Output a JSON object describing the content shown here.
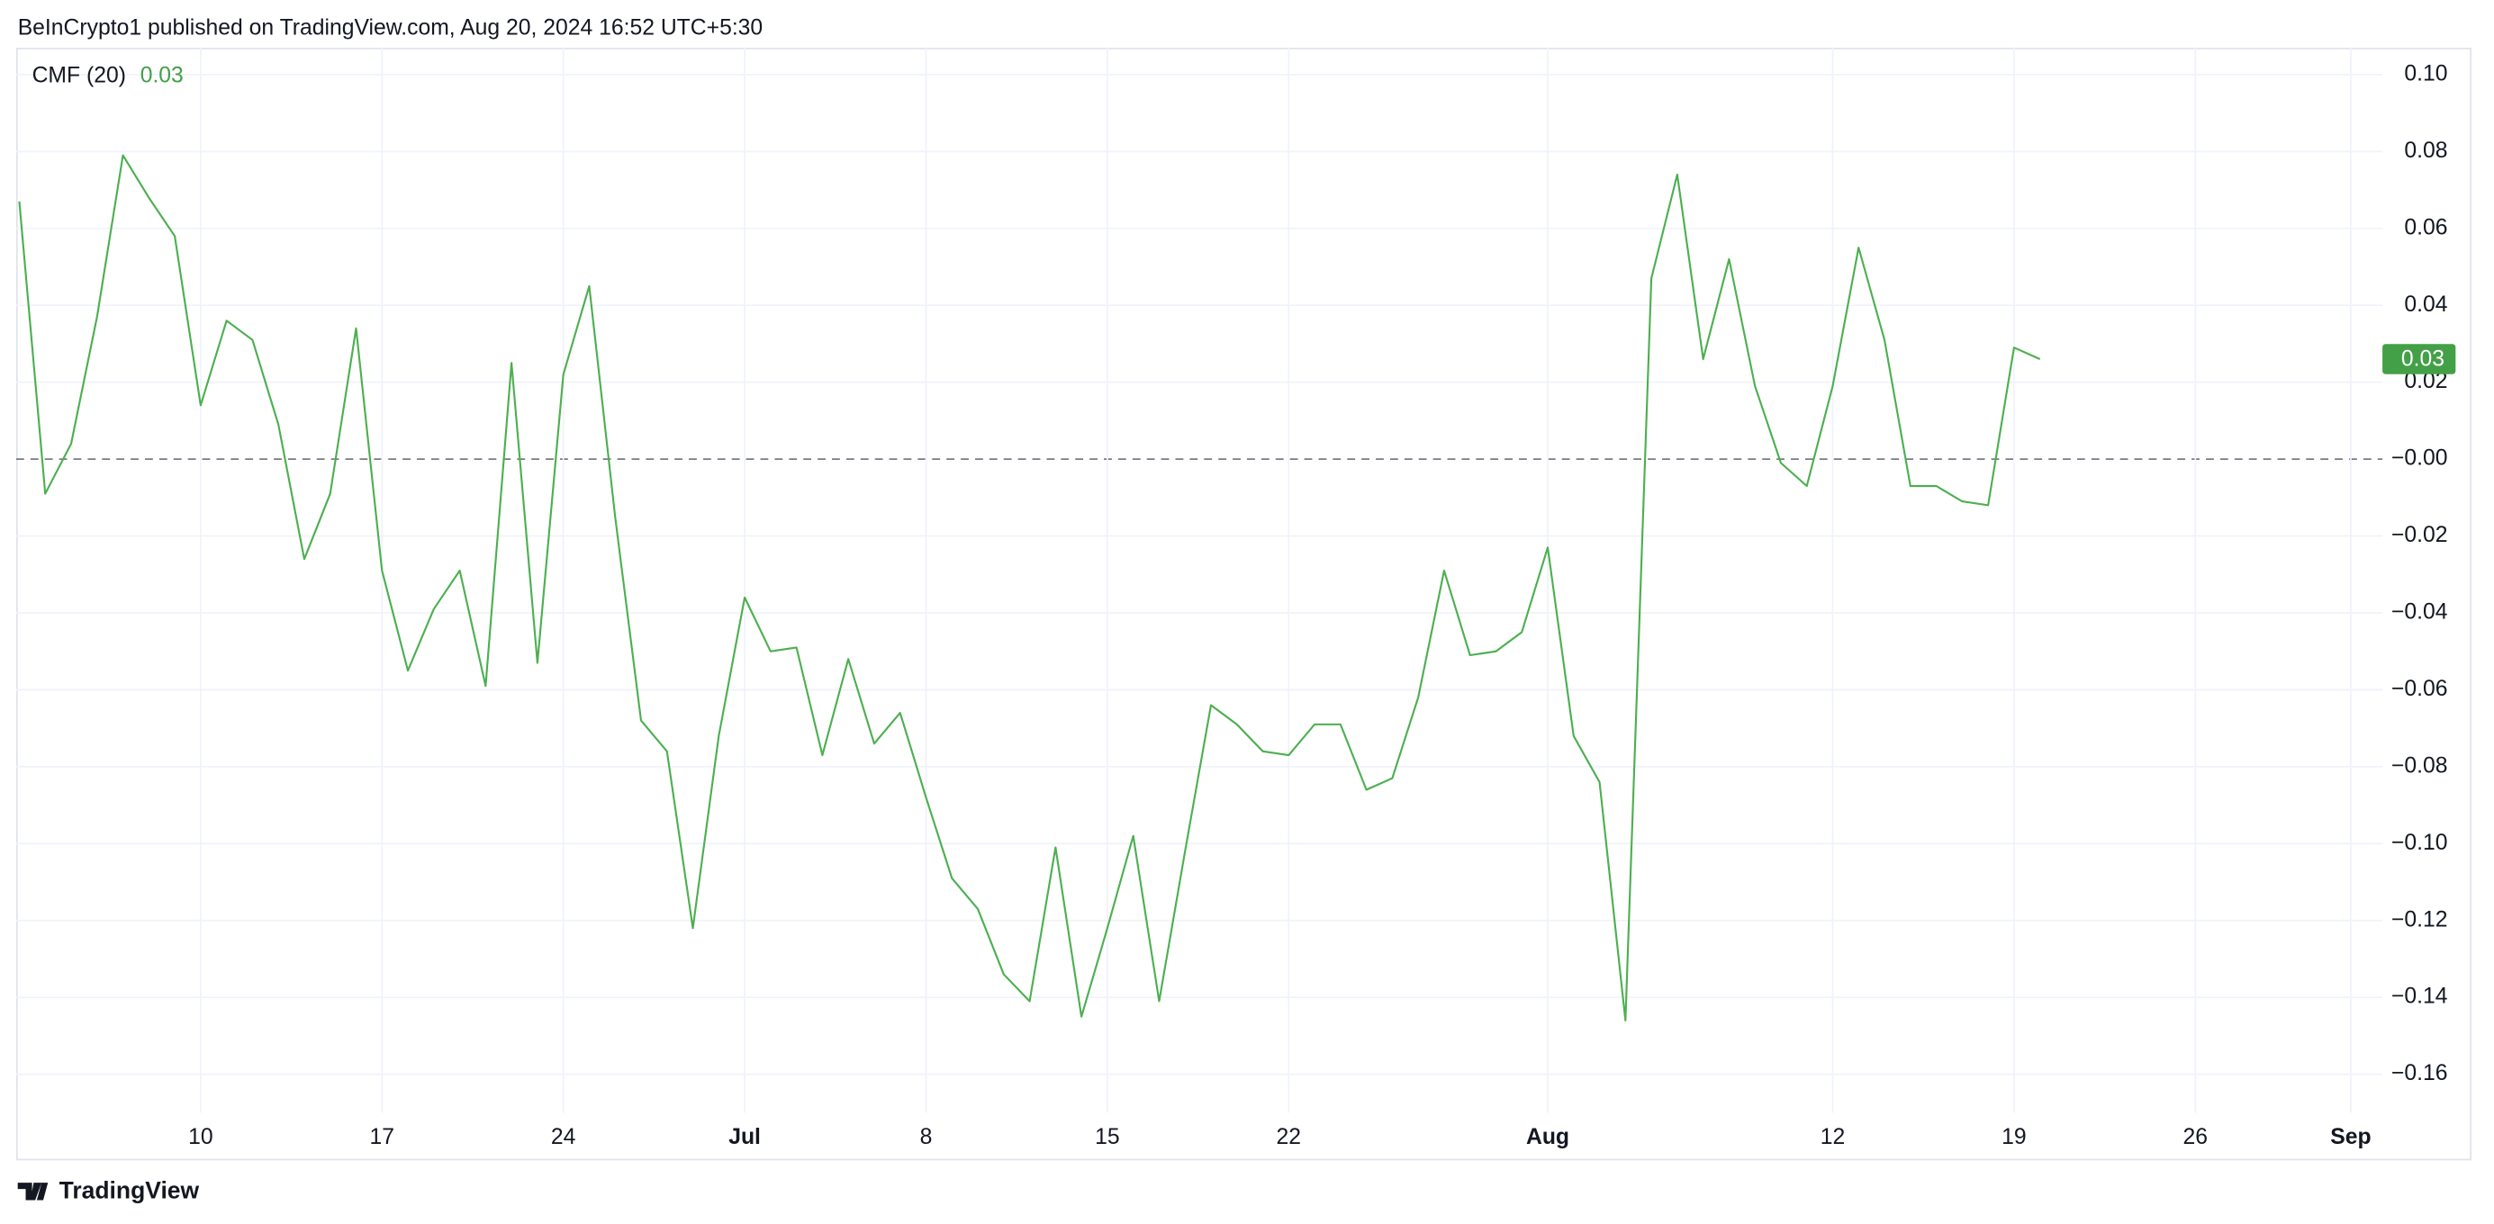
{
  "header": {
    "text": "BeInCrypto1 published on TradingView.com, Aug 20, 2024 16:52 UTC+5:30"
  },
  "footer": {
    "brand": "TradingView"
  },
  "chart_data": {
    "type": "line",
    "grid": true,
    "categories": [
      null,
      null,
      null,
      null,
      null,
      null,
      null,
      "10",
      null,
      null,
      null,
      null,
      null,
      null,
      "17",
      null,
      null,
      null,
      null,
      null,
      null,
      "24",
      null,
      null,
      null,
      null,
      null,
      null,
      "Jul",
      null,
      null,
      null,
      null,
      null,
      null,
      "8",
      null,
      null,
      null,
      null,
      null,
      null,
      "15",
      null,
      null,
      null,
      null,
      null,
      null,
      "22",
      null,
      null,
      null,
      null,
      null,
      null,
      null,
      null,
      null,
      "Aug",
      null,
      null,
      null,
      null,
      null,
      null,
      null,
      null,
      null,
      null,
      "12",
      null,
      null,
      null,
      null,
      null,
      null,
      "19",
      null,
      null,
      null,
      null,
      null,
      null,
      "26",
      null,
      null,
      null,
      null,
      null,
      "Sep",
      null
    ],
    "series": [
      {
        "name": "CMF (20)",
        "color": "#4caf50",
        "values": [
          0.067,
          -0.009,
          0.004,
          0.037,
          0.079,
          0.068,
          0.058,
          0.014,
          0.036,
          0.031,
          0.009,
          -0.026,
          -0.009,
          0.034,
          -0.029,
          -0.055,
          -0.039,
          -0.029,
          -0.059,
          0.025,
          -0.053,
          0.022,
          0.045,
          -0.015,
          -0.068,
          -0.076,
          -0.122,
          -0.072,
          -0.036,
          -0.05,
          -0.049,
          -0.077,
          -0.052,
          -0.074,
          -0.066,
          -0.088,
          -0.109,
          -0.117,
          -0.134,
          -0.141,
          -0.101,
          -0.145,
          -0.122,
          -0.098,
          -0.141,
          -0.102,
          -0.064,
          -0.069,
          -0.076,
          -0.077,
          -0.069,
          -0.069,
          -0.086,
          -0.083,
          -0.062,
          -0.029,
          -0.051,
          -0.05,
          -0.045,
          -0.023,
          -0.072,
          -0.084,
          -0.146,
          0.047,
          0.074,
          0.026,
          0.052,
          0.019,
          -0.001,
          -0.007,
          0.019,
          0.055,
          0.031,
          -0.007,
          -0.007,
          -0.011,
          -0.012,
          0.029,
          0.026,
          null,
          null,
          null,
          null,
          null,
          null,
          null,
          null,
          null,
          null,
          null,
          null,
          null
        ],
        "value_labels": [
          null,
          null,
          null,
          null,
          null,
          null,
          null,
          null,
          null,
          null,
          null,
          null,
          null,
          null,
          null,
          null,
          null,
          null,
          null,
          null,
          null,
          null,
          null,
          null,
          null,
          null,
          null,
          null,
          null,
          null,
          null,
          null,
          null,
          null,
          null,
          null,
          null,
          null,
          null,
          null,
          null,
          null,
          null,
          null,
          null,
          null,
          null,
          null,
          null,
          null,
          null,
          null,
          null,
          null,
          null,
          null,
          null,
          null,
          null,
          null,
          null,
          null,
          null,
          null,
          null,
          null,
          null,
          null,
          null,
          null,
          null,
          null,
          null,
          null,
          null,
          null,
          null,
          null,
          "0.03",
          null,
          null,
          null,
          null,
          null,
          null,
          null,
          null,
          null,
          null,
          null,
          null,
          null
        ]
      }
    ],
    "ylim": [
      -0.17,
      0.107
    ],
    "yticks": [
      {
        "value": 0.1,
        "label": "0.10"
      },
      0.08,
      0.06,
      0.04,
      0.02,
      {
        "value": 0,
        "label": "−0.00"
      },
      {
        "value": -0.02,
        "label": "−0.02"
      },
      {
        "value": -0.04,
        "label": "−0.04"
      },
      {
        "value": -0.06,
        "label": "−0.06"
      },
      {
        "value": -0.08,
        "label": "−0.08"
      },
      {
        "value": -0.1,
        "label": "−0.10"
      },
      {
        "value": -0.12,
        "label": "−0.12"
      },
      {
        "value": -0.14,
        "label": "−0.14"
      },
      {
        "value": -0.16,
        "label": "−0.16"
      }
    ]
  }
}
